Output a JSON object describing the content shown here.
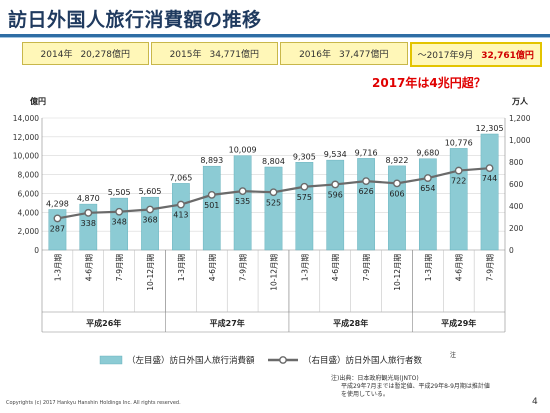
{
  "header": {
    "title": "訪日外国人旅行消費額の推移"
  },
  "summary": [
    {
      "year": "2014年",
      "value": "20,278億円"
    },
    {
      "year": "2015年",
      "value": "34,771億円"
    },
    {
      "year": "2016年",
      "value": "37,477億円"
    },
    {
      "year": "～2017年9月",
      "value": "32,761億円"
    }
  ],
  "callout": "2017年は4兆円超？",
  "chart_data": {
    "type": "bar+line",
    "left_axis_unit": "億円",
    "right_axis_unit": "万人",
    "left_ylim": [
      0,
      14000
    ],
    "right_ylim": [
      0,
      1200
    ],
    "left_ticks": [
      "0",
      "2,000",
      "4,000",
      "6,000",
      "8,000",
      "10,000",
      "12,000",
      "14,000"
    ],
    "right_ticks": [
      "0",
      "200",
      "400",
      "600",
      "800",
      "1,000",
      "1,200"
    ],
    "categories": [
      "1-3月期",
      "4-6月期",
      "7-9月期",
      "10-12月期",
      "1-3月期",
      "4-6月期",
      "7-9月期",
      "10-12月期",
      "1-3月期",
      "4-6月期",
      "7-9月期",
      "10-12月期",
      "1-3月期",
      "4-6月期",
      "7-9月期"
    ],
    "groups": [
      {
        "label": "平成26年",
        "start": 0,
        "count": 4
      },
      {
        "label": "平成27年",
        "start": 4,
        "count": 4
      },
      {
        "label": "平成28年",
        "start": 8,
        "count": 4
      },
      {
        "label": "平成29年",
        "start": 12,
        "count": 3
      }
    ],
    "series": [
      {
        "name": "（左目盛）訪日外国人旅行消費額",
        "axis": "left",
        "type": "bar",
        "values": [
          4298,
          4870,
          5505,
          5605,
          7065,
          8893,
          10009,
          8804,
          9305,
          9534,
          9716,
          8922,
          9680,
          10776,
          12305
        ],
        "labels": [
          "4,298",
          "4,870",
          "5,505",
          "5,605",
          "7,065",
          "8,893",
          "10,009",
          "8,804",
          "9,305",
          "9,534",
          "9,716",
          "8,922",
          "9,680",
          "10,776",
          "12,305"
        ]
      },
      {
        "name": "（右目盛）訪日外国人旅行者数",
        "axis": "right",
        "type": "line",
        "values": [
          287,
          338,
          348,
          368,
          413,
          501,
          535,
          525,
          575,
          596,
          626,
          606,
          654,
          722,
          744
        ],
        "labels": [
          "287",
          "338",
          "348",
          "368",
          "413",
          "501",
          "535",
          "525",
          "575",
          "596",
          "626",
          "606",
          "654",
          "722",
          "744"
        ]
      }
    ],
    "legend_note": "注",
    "colors": {
      "bar": "#8ccbd4",
      "bar_edge": "#5aaab6",
      "line": "#6a6a6a",
      "marker_fill": "#ffffff"
    }
  },
  "source_lines": [
    "注)出典：日本政府観光局(JNTO)",
    "平成29年7月までは暫定値、平成29年8-9月期は推計値",
    "を使用している。"
  ],
  "footer": {
    "copyright": "Copyrights (c) 2017 Hankyu Hanshin Holdings Inc. All rights reserved.",
    "page": "4"
  }
}
